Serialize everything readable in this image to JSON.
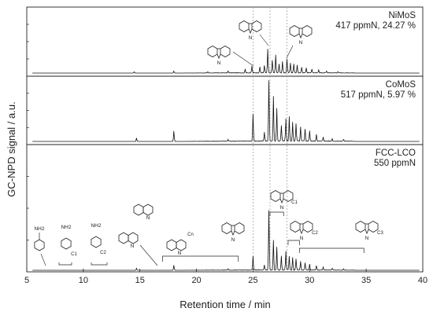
{
  "chart_data": {
    "type": "line",
    "x_axis": {
      "label": "Retention time / min",
      "ticks": [
        5,
        10,
        15,
        20,
        25,
        30,
        35,
        40
      ],
      "range": [
        5,
        40
      ]
    },
    "y_axis": {
      "label": "GC-NPD signal / a.u."
    },
    "reference_lines_x": [
      25.0,
      26.5,
      28.0
    ],
    "panels": [
      {
        "name": "NiMoS",
        "label_lines": [
          "NiMoS",
          "417 ppmN, 24.27 %"
        ],
        "peaks": [
          [
            14.5,
            0.02
          ],
          [
            18.0,
            0.03
          ],
          [
            21.0,
            0.02
          ],
          [
            22.8,
            0.03
          ],
          [
            24.3,
            0.06
          ],
          [
            24.9,
            0.11
          ],
          [
            25.6,
            0.09
          ],
          [
            26.0,
            0.12
          ],
          [
            26.3,
            0.38
          ],
          [
            26.7,
            0.2
          ],
          [
            27.0,
            0.28
          ],
          [
            27.3,
            0.14
          ],
          [
            27.6,
            0.18
          ],
          [
            28.0,
            0.22
          ],
          [
            28.3,
            0.16
          ],
          [
            28.6,
            0.14
          ],
          [
            28.9,
            0.12
          ],
          [
            29.3,
            0.09
          ],
          [
            29.7,
            0.08
          ],
          [
            30.2,
            0.06
          ],
          [
            30.8,
            0.05
          ],
          [
            31.5,
            0.03
          ],
          [
            32.5,
            0.02
          ]
        ],
        "annotations": [
          {
            "molecule": "carbazole"
          },
          {
            "molecule": "carbazole"
          },
          {
            "molecule": "dimethylcarbazole"
          }
        ]
      },
      {
        "name": "CoMoS",
        "label_lines": [
          "CoMoS",
          "517 ppmN, 5.97 %"
        ],
        "peaks": [
          [
            14.7,
            0.04
          ],
          [
            18.0,
            0.12
          ],
          [
            22.8,
            0.02
          ],
          [
            25.0,
            0.32
          ],
          [
            26.0,
            0.1
          ],
          [
            26.4,
            0.7
          ],
          [
            26.8,
            0.52
          ],
          [
            27.1,
            0.38
          ],
          [
            27.5,
            0.18
          ],
          [
            27.9,
            0.26
          ],
          [
            28.2,
            0.28
          ],
          [
            28.5,
            0.22
          ],
          [
            28.8,
            0.2
          ],
          [
            29.2,
            0.16
          ],
          [
            29.6,
            0.14
          ],
          [
            30.0,
            0.12
          ],
          [
            30.6,
            0.08
          ],
          [
            31.2,
            0.05
          ],
          [
            32.0,
            0.03
          ],
          [
            33.0,
            0.02
          ]
        ]
      },
      {
        "name": "FCC-LCO",
        "label_lines": [
          "FCC-LCO",
          "550 ppmN"
        ],
        "peaks": [
          [
            14.7,
            0.03
          ],
          [
            18.0,
            0.08
          ],
          [
            22.8,
            0.02
          ],
          [
            25.0,
            0.22
          ],
          [
            26.0,
            0.08
          ],
          [
            26.4,
            0.95
          ],
          [
            26.8,
            0.48
          ],
          [
            27.1,
            0.36
          ],
          [
            27.5,
            0.22
          ],
          [
            27.9,
            0.3
          ],
          [
            28.2,
            0.22
          ],
          [
            28.5,
            0.2
          ],
          [
            28.8,
            0.18
          ],
          [
            29.2,
            0.14
          ],
          [
            29.6,
            0.12
          ],
          [
            30.0,
            0.1
          ],
          [
            30.6,
            0.07
          ],
          [
            31.2,
            0.05
          ],
          [
            32.0,
            0.03
          ],
          [
            33.0,
            0.02
          ]
        ],
        "annotations": [
          {
            "molecule": "aniline",
            "label": "NH2"
          },
          {
            "molecule": "C1-aniline",
            "label": "NH2",
            "substituent": "C1"
          },
          {
            "molecule": "C2-aniline",
            "label": "NH2",
            "substituent": "C2"
          },
          {
            "molecule": "quinoline",
            "label": "N"
          },
          {
            "molecule": "dimethylquinoline",
            "label": "N"
          },
          {
            "molecule": "Cn-quinoline",
            "label": "N",
            "substituent": "Cn",
            "range": [
              17.0,
              23.7
            ]
          },
          {
            "molecule": "carbazole",
            "label": "N H"
          },
          {
            "molecule": "C1-carbazole",
            "label": "N H",
            "substituent": "C1",
            "range": [
              26.5,
              27.7
            ]
          },
          {
            "molecule": "C2-carbazole",
            "label": "N H",
            "substituent": "C2",
            "range": [
              28.1,
              29.1
            ]
          },
          {
            "molecule": "C3-carbazole",
            "label": "N H",
            "substituent": "C3",
            "range": [
              29.1,
              34.8
            ]
          }
        ]
      }
    ]
  }
}
